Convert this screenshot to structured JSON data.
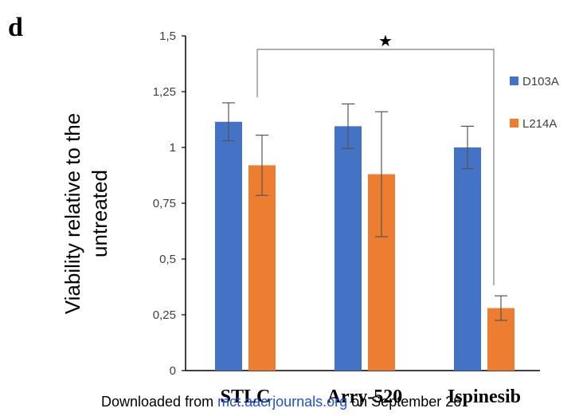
{
  "panel_label": "d",
  "chart_data": {
    "type": "bar",
    "title": "",
    "xlabel": "",
    "ylabel_lines": [
      "Viability relative to the",
      "untreated"
    ],
    "categories": [
      "STLC",
      "Arry-520",
      "Ispinesib"
    ],
    "ylim": [
      0,
      1.5
    ],
    "yticks": [
      "0",
      "0,25",
      "0,5",
      "0,75",
      "1",
      "1,25",
      "1,5"
    ],
    "ytick_values": [
      0,
      0.25,
      0.5,
      0.75,
      1,
      1.25,
      1.5
    ],
    "grid": false,
    "legend_position": "right",
    "series": [
      {
        "name": "D103A",
        "color": "#4472C4",
        "values": [
          1.115,
          1.095,
          1.0
        ],
        "errors": [
          0.085,
          0.1,
          0.095
        ]
      },
      {
        "name": "L214A",
        "color": "#ED7D31",
        "values": [
          0.92,
          0.88,
          0.28
        ],
        "errors": [
          0.135,
          0.28,
          0.055
        ]
      }
    ],
    "annotations": [
      {
        "text": "★",
        "type": "significance-bracket",
        "from": "STLC L214A",
        "to": "Ispinesib L214A"
      }
    ]
  },
  "footer": {
    "prefix": "Downloaded from ",
    "link": "mct.aacrjournals.org",
    "suffix": " on September 26",
    "link_color": "#1F4FE0",
    "text_color": "#000000"
  }
}
